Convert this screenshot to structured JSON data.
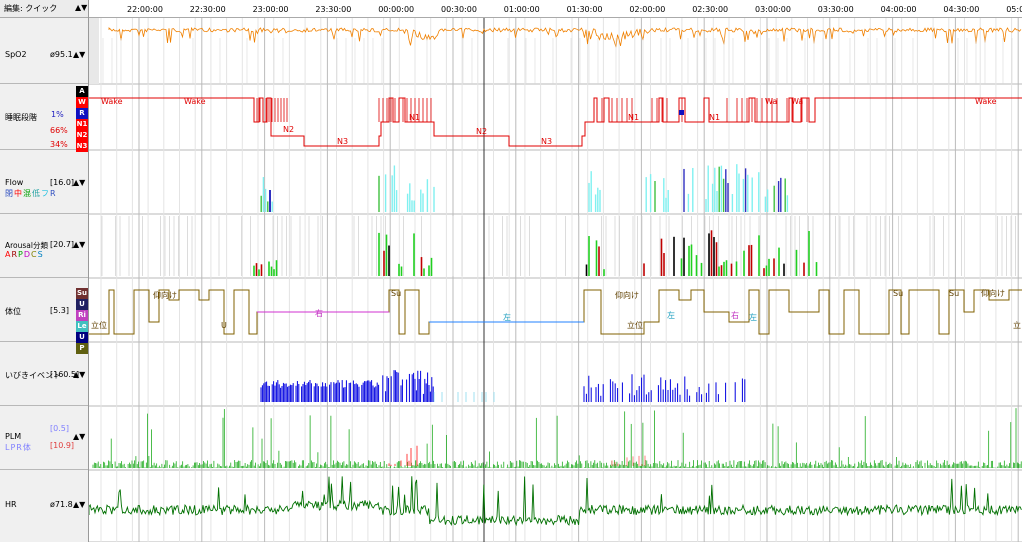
{
  "header": {
    "mode_label": "編集: クイック",
    "arrows": "▲▼"
  },
  "time_axis": [
    "22:00:00",
    "22:30:00",
    "23:00:00",
    "23:30:00",
    "00:00:00",
    "00:30:00",
    "01:00:00",
    "01:30:00",
    "02:00:00",
    "02:30:00",
    "03:00:00",
    "03:30:00",
    "04:00:00",
    "04:30:00",
    "05:00:0"
  ],
  "panels": {
    "spo2": {
      "label": "SpO2",
      "value": "ø95.1",
      "ymax": "100",
      "ymin": "70"
    },
    "stage": {
      "label": "睡眠段階",
      "boxes": [
        "A",
        "W",
        "R",
        "N1",
        "N2",
        "N3"
      ],
      "box_colors": [
        "#000000",
        "#ff0000",
        "#1010c0",
        "#ff0000",
        "#ff0000",
        "#ff0000"
      ],
      "pct_r": "1%",
      "pct_n2": "66%",
      "pct_n3": "34%",
      "text_labels": [
        "Wake",
        "Wake",
        "N2",
        "N3",
        "N1",
        "N2",
        "N3",
        "N1",
        "N1",
        "Wa",
        "Wa",
        "Wake"
      ]
    },
    "flow": {
      "label": "Flow",
      "value": "[16.0]",
      "legend": [
        "閉",
        "中",
        "混",
        "低",
        "フ",
        "R"
      ],
      "legend_colors": [
        "#3050c0",
        "#ff0000",
        "#00a000",
        "#20a0a0",
        "#20c0e0",
        "#3050c0"
      ],
      "ymax": "68"
    },
    "arousal": {
      "label": "Arousal分類",
      "value": "[20.7]",
      "legend": [
        "A",
        "R",
        "P",
        "D",
        "C",
        "S"
      ],
      "legend_colors": [
        "#ff0000",
        "#a00000",
        "#00a000",
        "#c000c0",
        "#808000",
        "#0080c0"
      ],
      "ymax": "32"
    },
    "position": {
      "label": "体位",
      "value": "[5.3]",
      "boxes": [
        "Su",
        "U",
        "Ri",
        "Le",
        "U",
        "P"
      ],
      "box_colors": [
        "#703030",
        "#202060",
        "#c040c0",
        "#40c0c0",
        "#000080",
        "#606010"
      ],
      "text_labels": [
        "立位",
        "仰向け",
        "U",
        "右",
        "Su",
        "左",
        "仰向け",
        "立位",
        "左",
        "右",
        "左",
        "Su",
        "Su",
        "仰向け",
        "立"
      ]
    },
    "snore": {
      "label": "いびきイベント",
      "value": "[160.5]",
      "ymax": "100"
    },
    "plm": {
      "label": "PLM",
      "value1": "[0.5]",
      "value2": "[10.9]",
      "legend": [
        "L",
        "P",
        "R",
        "体"
      ],
      "legend_colors": [
        "#8080ff",
        "#8080ff",
        "#8080ff",
        "#8080ff"
      ],
      "ymax": "216"
    },
    "hr": {
      "label": "HR",
      "value": "ø71.8",
      "ymax": "120",
      "ymin": "40"
    }
  },
  "colors": {
    "spo2": "#f08000",
    "stage": "#e00000",
    "flow_light": "#80f0f0",
    "flow_dark": "#3030c0",
    "arousal_green": "#20d020",
    "arousal_red": "#c00000",
    "position": "#806000",
    "position_blue": "#2080ff",
    "position_magenta": "#d030d0",
    "snore": "#0000e0",
    "plm": "#00a000",
    "hr": "#007000"
  }
}
